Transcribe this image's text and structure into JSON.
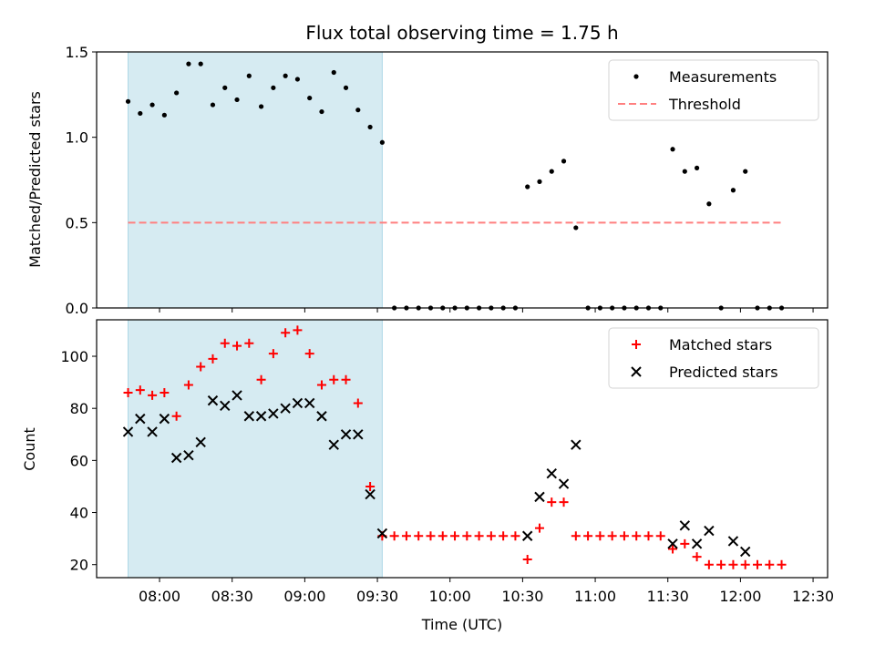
{
  "chart_data": [
    {
      "type": "scatter",
      "title": "Flux total observing time = 1.75 h",
      "ylabel": "Matched/Predicted stars",
      "xlabel": "",
      "xlim": [
        "07:34",
        "12:36"
      ],
      "ylim": [
        0,
        1.5
      ],
      "yticks": [
        "0.0",
        "0.5",
        "1.0",
        "1.5"
      ],
      "shaded_span": [
        "07:47",
        "09:32"
      ],
      "shaded_color": "#add8e6",
      "legend_position": "top-right",
      "series": [
        {
          "name": "Measurements",
          "marker": "dot",
          "color": "#000000",
          "points": [
            [
              "07:47",
              1.21
            ],
            [
              "07:52",
              1.14
            ],
            [
              "07:57",
              1.19
            ],
            [
              "08:02",
              1.13
            ],
            [
              "08:07",
              1.26
            ],
            [
              "08:12",
              1.43
            ],
            [
              "08:17",
              1.43
            ],
            [
              "08:22",
              1.19
            ],
            [
              "08:27",
              1.29
            ],
            [
              "08:32",
              1.22
            ],
            [
              "08:37",
              1.36
            ],
            [
              "08:42",
              1.18
            ],
            [
              "08:47",
              1.29
            ],
            [
              "08:52",
              1.36
            ],
            [
              "08:57",
              1.34
            ],
            [
              "09:02",
              1.23
            ],
            [
              "09:07",
              1.15
            ],
            [
              "09:12",
              1.38
            ],
            [
              "09:17",
              1.29
            ],
            [
              "09:22",
              1.16
            ],
            [
              "09:27",
              1.06
            ],
            [
              "09:32",
              0.97
            ],
            [
              "09:37",
              0
            ],
            [
              "09:42",
              0
            ],
            [
              "09:47",
              0
            ],
            [
              "09:52",
              0
            ],
            [
              "09:57",
              0
            ],
            [
              "10:02",
              0
            ],
            [
              "10:07",
              0
            ],
            [
              "10:12",
              0
            ],
            [
              "10:17",
              0
            ],
            [
              "10:22",
              0
            ],
            [
              "10:27",
              0
            ],
            [
              "10:32",
              0.71
            ],
            [
              "10:37",
              0.74
            ],
            [
              "10:42",
              0.8
            ],
            [
              "10:47",
              0.86
            ],
            [
              "10:52",
              0.47
            ],
            [
              "10:57",
              0
            ],
            [
              "11:02",
              0
            ],
            [
              "11:07",
              0
            ],
            [
              "11:12",
              0
            ],
            [
              "11:17",
              0
            ],
            [
              "11:22",
              0
            ],
            [
              "11:27",
              0
            ],
            [
              "11:32",
              0.93
            ],
            [
              "11:37",
              0.8
            ],
            [
              "11:42",
              0.82
            ],
            [
              "11:47",
              0.61
            ],
            [
              "11:52",
              0
            ],
            [
              "11:57",
              0.69
            ],
            [
              "12:02",
              0.8
            ],
            [
              "12:07",
              0
            ],
            [
              "12:12",
              0
            ],
            [
              "12:17",
              0
            ]
          ]
        },
        {
          "name": "Threshold",
          "marker": "dashed-line",
          "color": "#ff7f7f",
          "points": [
            [
              "07:47",
              0.5
            ],
            [
              "12:17",
              0.5
            ]
          ]
        }
      ]
    },
    {
      "type": "scatter",
      "title": "",
      "ylabel": "Count",
      "xlabel": "Time (UTC)",
      "xlim": [
        "07:34",
        "12:36"
      ],
      "ylim": [
        15,
        114
      ],
      "yticks": [
        "20",
        "40",
        "60",
        "80",
        "100"
      ],
      "xticks": [
        "08:00",
        "08:30",
        "09:00",
        "09:30",
        "10:00",
        "10:30",
        "11:00",
        "11:30",
        "12:00",
        "12:30"
      ],
      "shaded_span": [
        "07:47",
        "09:32"
      ],
      "shaded_color": "#add8e6",
      "legend_position": "top-right",
      "series": [
        {
          "name": "Matched stars",
          "marker": "plus",
          "color": "#ff0000",
          "points": [
            [
              "07:47",
              86
            ],
            [
              "07:52",
              87
            ],
            [
              "07:57",
              85
            ],
            [
              "08:02",
              86
            ],
            [
              "08:07",
              77
            ],
            [
              "08:12",
              89
            ],
            [
              "08:17",
              96
            ],
            [
              "08:22",
              99
            ],
            [
              "08:27",
              105
            ],
            [
              "08:32",
              104
            ],
            [
              "08:37",
              105
            ],
            [
              "08:42",
              91
            ],
            [
              "08:47",
              101
            ],
            [
              "08:52",
              109
            ],
            [
              "08:57",
              110
            ],
            [
              "09:02",
              101
            ],
            [
              "09:07",
              89
            ],
            [
              "09:12",
              91
            ],
            [
              "09:17",
              91
            ],
            [
              "09:22",
              82
            ],
            [
              "09:27",
              50
            ],
            [
              "09:32",
              31
            ],
            [
              "09:37",
              31
            ],
            [
              "09:42",
              31
            ],
            [
              "09:47",
              31
            ],
            [
              "09:52",
              31
            ],
            [
              "09:57",
              31
            ],
            [
              "10:02",
              31
            ],
            [
              "10:07",
              31
            ],
            [
              "10:12",
              31
            ],
            [
              "10:17",
              31
            ],
            [
              "10:22",
              31
            ],
            [
              "10:27",
              31
            ],
            [
              "10:32",
              22
            ],
            [
              "10:37",
              34
            ],
            [
              "10:42",
              44
            ],
            [
              "10:47",
              44
            ],
            [
              "10:52",
              31
            ],
            [
              "10:57",
              31
            ],
            [
              "11:02",
              31
            ],
            [
              "11:07",
              31
            ],
            [
              "11:12",
              31
            ],
            [
              "11:17",
              31
            ],
            [
              "11:22",
              31
            ],
            [
              "11:27",
              31
            ],
            [
              "11:32",
              26
            ],
            [
              "11:37",
              28
            ],
            [
              "11:42",
              23
            ],
            [
              "11:47",
              20
            ],
            [
              "11:52",
              20
            ],
            [
              "11:57",
              20
            ],
            [
              "12:02",
              20
            ],
            [
              "12:07",
              20
            ],
            [
              "12:12",
              20
            ],
            [
              "12:17",
              20
            ]
          ]
        },
        {
          "name": "Predicted stars",
          "marker": "x",
          "color": "#000000",
          "points": [
            [
              "07:47",
              71
            ],
            [
              "07:52",
              76
            ],
            [
              "07:57",
              71
            ],
            [
              "08:02",
              76
            ],
            [
              "08:07",
              61
            ],
            [
              "08:12",
              62
            ],
            [
              "08:17",
              67
            ],
            [
              "08:22",
              83
            ],
            [
              "08:27",
              81
            ],
            [
              "08:32",
              85
            ],
            [
              "08:37",
              77
            ],
            [
              "08:42",
              77
            ],
            [
              "08:47",
              78
            ],
            [
              "08:52",
              80
            ],
            [
              "08:57",
              82
            ],
            [
              "09:02",
              82
            ],
            [
              "09:07",
              77
            ],
            [
              "09:12",
              66
            ],
            [
              "09:17",
              70
            ],
            [
              "09:22",
              70
            ],
            [
              "09:27",
              47
            ],
            [
              "09:32",
              32
            ],
            [
              "10:32",
              31
            ],
            [
              "10:37",
              46
            ],
            [
              "10:42",
              55
            ],
            [
              "10:47",
              51
            ],
            [
              "10:52",
              66
            ],
            [
              "11:32",
              28
            ],
            [
              "11:37",
              35
            ],
            [
              "11:42",
              28
            ],
            [
              "11:47",
              33
            ],
            [
              "11:57",
              29
            ],
            [
              "12:02",
              25
            ]
          ]
        }
      ]
    }
  ]
}
